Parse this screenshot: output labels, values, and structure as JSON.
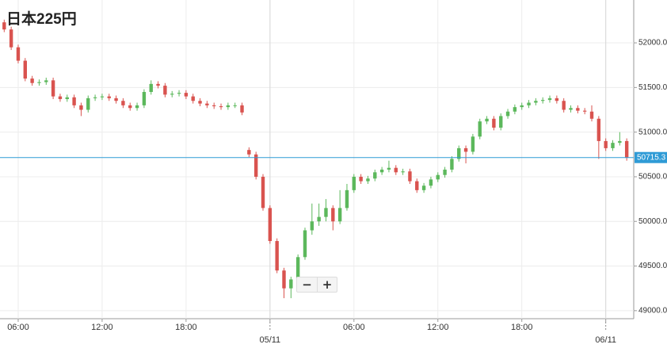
{
  "chart_data": {
    "type": "candlestick",
    "title": "日本225円",
    "up_color": "#5cb85c",
    "down_color": "#d9534f",
    "last_price_color": "#2f9bd6",
    "xlim": [
      4.7,
      50
    ],
    "ylim": [
      48910,
      52480
    ],
    "xticks": [
      {
        "value": 6,
        "label": "06:00"
      },
      {
        "value": 12,
        "label": "12:00"
      },
      {
        "value": 18,
        "label": "18:00"
      },
      {
        "value": 24,
        "label": "05/11"
      },
      {
        "value": 30,
        "label": "06:00"
      },
      {
        "value": 36,
        "label": "12:00"
      },
      {
        "value": 42,
        "label": "18:00"
      },
      {
        "value": 48,
        "label": "06/11"
      }
    ],
    "day_breaks": [
      24,
      48
    ],
    "yticks": [
      {
        "value": 49000,
        "label": "49000.0"
      },
      {
        "value": 49500,
        "label": "49500.0"
      },
      {
        "value": 50000,
        "label": "50000.0"
      },
      {
        "value": 50500,
        "label": "50500.0"
      },
      {
        "value": 51000,
        "label": "51000.0"
      },
      {
        "value": 51500,
        "label": "51500.0"
      },
      {
        "value": 52000,
        "label": "52000.0"
      }
    ],
    "grid": true,
    "last_price": 50715.3,
    "x": [
      5,
      5.5,
      6,
      6.5,
      7,
      7.5,
      8,
      8.5,
      9,
      9.5,
      10,
      10.5,
      11,
      11.5,
      12,
      12.5,
      13,
      13.5,
      14,
      14.5,
      15,
      15.5,
      16,
      16.5,
      17,
      17.5,
      18,
      18.5,
      19,
      19.5,
      20,
      20.5,
      21,
      21.5,
      22,
      22.5,
      23,
      23.5,
      24,
      24.5,
      25,
      25.5,
      26,
      26.5,
      27,
      27.5,
      28,
      28.5,
      29,
      29.5,
      30,
      30.5,
      31,
      31.5,
      32,
      32.5,
      33,
      33.5,
      34,
      34.5,
      35,
      35.5,
      36,
      36.5,
      37,
      37.5,
      38,
      38.5,
      39,
      39.5,
      40,
      40.5,
      41,
      41.5,
      42,
      42.5,
      43,
      43.5,
      44,
      44.5,
      45,
      45.5,
      46,
      46.5,
      47,
      47.5,
      48,
      48.5,
      49,
      49.5
    ],
    "open": [
      52230,
      52150,
      51950,
      51800,
      51600,
      51550,
      51560,
      51580,
      51400,
      51370,
      51390,
      51300,
      51250,
      51380,
      51390,
      51400,
      51380,
      51350,
      51300,
      51270,
      51300,
      51450,
      51540,
      51520,
      51420,
      51430,
      51440,
      51400,
      51350,
      51320,
      51300,
      51290,
      51280,
      51300,
      51300,
      50800,
      50750,
      50500,
      50150,
      49780,
      49450,
      49250,
      49350,
      49600,
      49900,
      50000,
      50050,
      50150,
      50000,
      50150,
      50350,
      50500,
      50450,
      50480,
      50550,
      50580,
      50600,
      50550,
      50560,
      50450,
      50350,
      50400,
      50470,
      50520,
      50580,
      50700,
      50820,
      50780,
      50950,
      51120,
      51150,
      51050,
      51180,
      51230,
      51280,
      51300,
      51330,
      51350,
      51360,
      51380,
      51350,
      51250,
      51270,
      51240,
      51230,
      51150,
      50900,
      50820,
      50880,
      50900
    ],
    "high": [
      52260,
      52180,
      51980,
      51830,
      51630,
      51590,
      51610,
      51610,
      51430,
      51420,
      51420,
      51330,
      51410,
      51420,
      51430,
      51430,
      51410,
      51380,
      51330,
      51330,
      51480,
      51580,
      51570,
      51550,
      51460,
      51470,
      51470,
      51430,
      51380,
      51350,
      51330,
      51320,
      51330,
      51330,
      51330,
      50830,
      50780,
      50530,
      50180,
      49810,
      49480,
      49380,
      49630,
      49930,
      50200,
      50200,
      50250,
      50180,
      50350,
      50420,
      50530,
      50530,
      50510,
      50580,
      50610,
      50680,
      50630,
      50590,
      50590,
      50480,
      50430,
      50500,
      50550,
      50610,
      50730,
      50850,
      50850,
      50980,
      51150,
      51180,
      51180,
      51210,
      51260,
      51310,
      51330,
      51360,
      51380,
      51390,
      51410,
      51410,
      51380,
      51300,
      51300,
      51270,
      51300,
      51180,
      50930,
      50910,
      51000,
      50930
    ],
    "low": [
      52120,
      51920,
      51770,
      51570,
      51520,
      51520,
      51530,
      51370,
      51340,
      51340,
      51270,
      51180,
      51220,
      51350,
      51360,
      51350,
      51320,
      51270,
      51240,
      51240,
      51270,
      51420,
      51490,
      51390,
      51390,
      51400,
      51370,
      51320,
      51290,
      51270,
      51260,
      51250,
      51250,
      51270,
      51190,
      50720,
      50470,
      50120,
      49750,
      49420,
      49140,
      49140,
      49320,
      49570,
      49850,
      49950,
      50000,
      49900,
      49970,
      50120,
      50320,
      50420,
      50420,
      50450,
      50520,
      50550,
      50520,
      50520,
      50420,
      50320,
      50320,
      50370,
      50440,
      50490,
      50550,
      50670,
      50650,
      50750,
      50920,
      51090,
      51020,
      51020,
      51150,
      51200,
      51250,
      51270,
      51300,
      51320,
      51330,
      51320,
      51220,
      51220,
      51210,
      51200,
      51120,
      50700,
      50790,
      50790,
      50850,
      50680
    ],
    "close": [
      52150,
      51950,
      51800,
      51600,
      51550,
      51560,
      51580,
      51400,
      51370,
      51390,
      51300,
      51250,
      51380,
      51390,
      51400,
      51380,
      51350,
      51300,
      51270,
      51300,
      51450,
      51540,
      51520,
      51420,
      51430,
      51440,
      51400,
      51350,
      51320,
      51300,
      51290,
      51280,
      51300,
      51300,
      51220,
      50750,
      50500,
      50150,
      49780,
      49450,
      49250,
      49350,
      49600,
      49900,
      50000,
      50050,
      50150,
      50000,
      50150,
      50350,
      50500,
      50450,
      50480,
      50550,
      50580,
      50600,
      50550,
      50560,
      50450,
      50350,
      50400,
      50470,
      50520,
      50580,
      50700,
      50820,
      50780,
      50950,
      51120,
      51150,
      51050,
      51180,
      51230,
      51280,
      51300,
      51330,
      51350,
      51360,
      51380,
      51350,
      51250,
      51270,
      51240,
      51230,
      51150,
      50900,
      50820,
      50880,
      50900,
      50715
    ]
  },
  "controls": {
    "zoom_out": "−",
    "zoom_in": "+"
  }
}
